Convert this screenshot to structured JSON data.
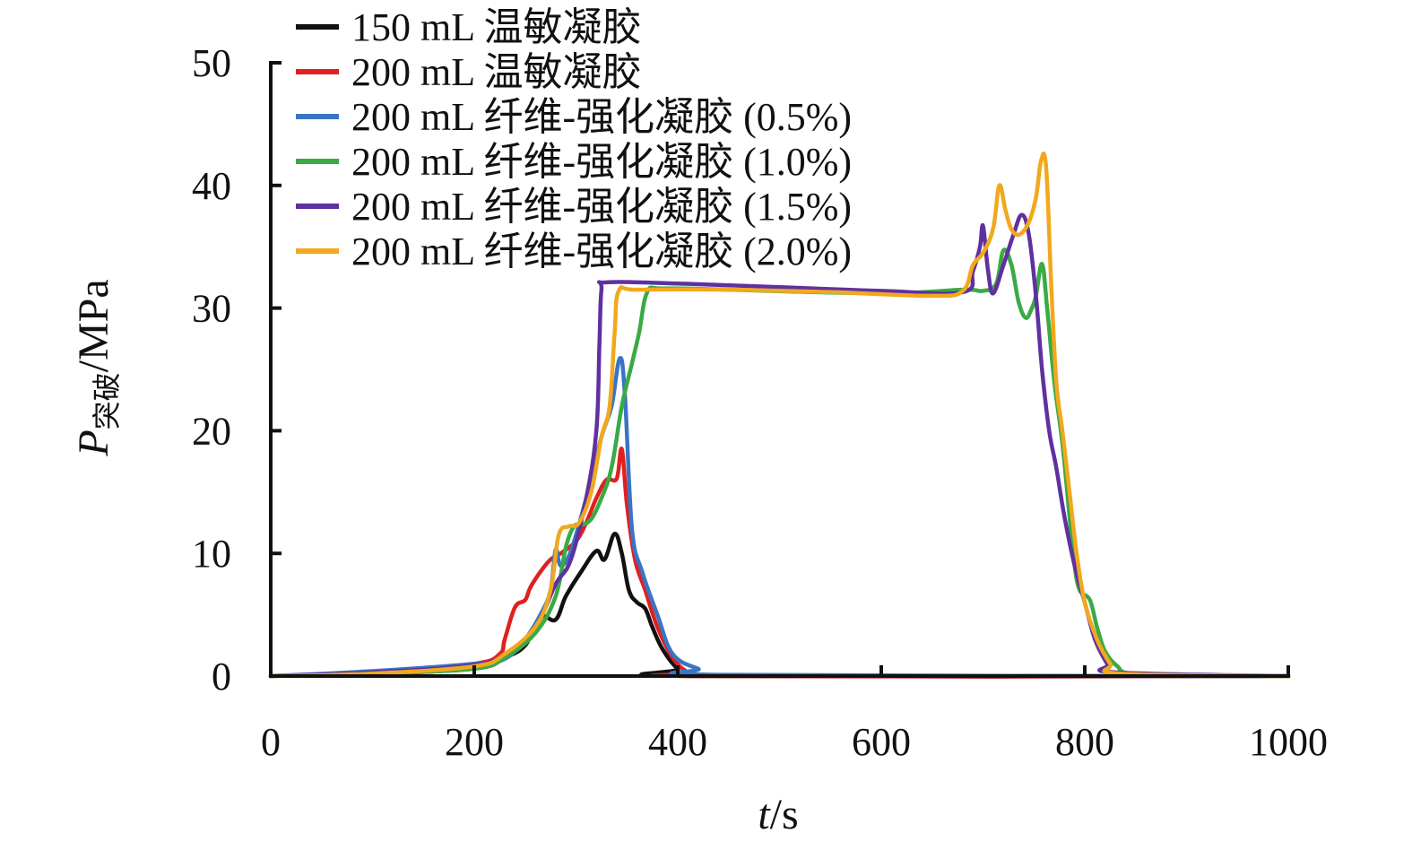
{
  "chart_data": {
    "type": "line",
    "x_axis": {
      "label_var": "t",
      "label_unit": "/s",
      "min": 0,
      "max": 1000,
      "ticks": [
        0,
        200,
        400,
        600,
        800,
        1000
      ]
    },
    "y_axis": {
      "label_var": "P",
      "label_sub": "突破",
      "label_unit": "/MPa",
      "min": 0,
      "max": 50,
      "ticks": [
        0,
        10,
        20,
        30,
        40,
        50
      ]
    },
    "legend": {
      "placement": "top-left"
    },
    "series": [
      {
        "name": "150 mL 温敏凝胶",
        "color": "#111111",
        "points": [
          [
            0,
            0
          ],
          [
            100,
            0.2
          ],
          [
            200,
            0.6
          ],
          [
            230,
            1.5
          ],
          [
            250,
            2.5
          ],
          [
            265,
            4.8
          ],
          [
            280,
            4.6
          ],
          [
            290,
            6.5
          ],
          [
            305,
            8.5
          ],
          [
            320,
            10.2
          ],
          [
            328,
            9.5
          ],
          [
            338,
            11.6
          ],
          [
            345,
            10
          ],
          [
            352,
            7
          ],
          [
            360,
            6
          ],
          [
            368,
            5.5
          ],
          [
            375,
            4
          ],
          [
            385,
            2.2
          ],
          [
            400,
            0.6
          ],
          [
            415,
            0
          ],
          [
            1000,
            0
          ]
        ]
      },
      {
        "name": "200 mL 温敏凝胶",
        "color": "#e02020",
        "points": [
          [
            0,
            0
          ],
          [
            100,
            0.3
          ],
          [
            200,
            1.0
          ],
          [
            225,
            1.8
          ],
          [
            230,
            3
          ],
          [
            240,
            5.6
          ],
          [
            250,
            6.2
          ],
          [
            255,
            7.2
          ],
          [
            265,
            8.5
          ],
          [
            275,
            9.5
          ],
          [
            285,
            10.0
          ],
          [
            300,
            11.0
          ],
          [
            310,
            12.5
          ],
          [
            320,
            14.5
          ],
          [
            330,
            16.0
          ],
          [
            340,
            16.1
          ],
          [
            345,
            18.5
          ],
          [
            350,
            14
          ],
          [
            358,
            9.5
          ],
          [
            368,
            7
          ],
          [
            380,
            4
          ],
          [
            395,
            1.5
          ],
          [
            410,
            0.3
          ],
          [
            425,
            0
          ],
          [
            1000,
            0
          ]
        ]
      },
      {
        "name": "200 mL 纤维-强化凝胶 (0.5%)",
        "color": "#3a75c4",
        "points": [
          [
            0,
            0
          ],
          [
            100,
            0.4
          ],
          [
            200,
            1.0
          ],
          [
            230,
            1.4
          ],
          [
            250,
            3
          ],
          [
            265,
            5
          ],
          [
            275,
            7
          ],
          [
            280,
            10.3
          ],
          [
            285,
            9
          ],
          [
            295,
            10.2
          ],
          [
            310,
            14.5
          ],
          [
            325,
            19.5
          ],
          [
            335,
            22
          ],
          [
            343,
            25.9
          ],
          [
            348,
            23
          ],
          [
            355,
            12
          ],
          [
            365,
            8.5
          ],
          [
            380,
            5
          ],
          [
            395,
            1.8
          ],
          [
            420,
            0.6
          ],
          [
            445,
            0.1
          ],
          [
            1000,
            0
          ]
        ]
      },
      {
        "name": "200 mL 纤维-强化凝胶 (1.0%)",
        "color": "#3aaa45",
        "points": [
          [
            0,
            0
          ],
          [
            100,
            0.2
          ],
          [
            200,
            0.6
          ],
          [
            230,
            1.5
          ],
          [
            260,
            3.5
          ],
          [
            280,
            6.5
          ],
          [
            290,
            10.5
          ],
          [
            298,
            12.2
          ],
          [
            305,
            12.3
          ],
          [
            315,
            12.8
          ],
          [
            325,
            14.5
          ],
          [
            335,
            17
          ],
          [
            345,
            22
          ],
          [
            355,
            25.5
          ],
          [
            362,
            28
          ],
          [
            370,
            31.3
          ],
          [
            385,
            31.6
          ],
          [
            450,
            31.5
          ],
          [
            600,
            31.2
          ],
          [
            680,
            31.5
          ],
          [
            700,
            31.4
          ],
          [
            713,
            32
          ],
          [
            720,
            34.7
          ],
          [
            728,
            33.5
          ],
          [
            735,
            30.5
          ],
          [
            742,
            29.2
          ],
          [
            748,
            30
          ],
          [
            752,
            31
          ],
          [
            758,
            33.6
          ],
          [
            763,
            30
          ],
          [
            770,
            24
          ],
          [
            778,
            19
          ],
          [
            785,
            13
          ],
          [
            790,
            9
          ],
          [
            795,
            7
          ],
          [
            805,
            6.2
          ],
          [
            812,
            4
          ],
          [
            820,
            2
          ],
          [
            832,
            0.8
          ],
          [
            845,
            0.2
          ],
          [
            900,
            0.05
          ],
          [
            1000,
            0
          ]
        ]
      },
      {
        "name": "200 mL 纤维-强化凝胶 (1.5%)",
        "color": "#6030a0",
        "points": [
          [
            0,
            0
          ],
          [
            100,
            0.3
          ],
          [
            200,
            0.9
          ],
          [
            230,
            1.8
          ],
          [
            260,
            4
          ],
          [
            280,
            7.5
          ],
          [
            295,
            9.5
          ],
          [
            310,
            14.5
          ],
          [
            320,
            20
          ],
          [
            323,
            27
          ],
          [
            325,
            31.5
          ],
          [
            330,
            32.1
          ],
          [
            400,
            32.0
          ],
          [
            500,
            31.7
          ],
          [
            600,
            31.4
          ],
          [
            680,
            31.3
          ],
          [
            690,
            33
          ],
          [
            697,
            35
          ],
          [
            700,
            36.7
          ],
          [
            705,
            33
          ],
          [
            710,
            31.2
          ],
          [
            720,
            33.5
          ],
          [
            730,
            36
          ],
          [
            738,
            37.6
          ],
          [
            745,
            36
          ],
          [
            752,
            31
          ],
          [
            758,
            25
          ],
          [
            765,
            20
          ],
          [
            772,
            17
          ],
          [
            780,
            13
          ],
          [
            790,
            9
          ],
          [
            800,
            6
          ],
          [
            810,
            3
          ],
          [
            822,
            1
          ],
          [
            830,
            0.3
          ],
          [
            1000,
            0
          ]
        ]
      },
      {
        "name": "200 mL 纤维-强化凝胶 (2.0%)",
        "color": "#f2a81e",
        "points": [
          [
            0,
            0
          ],
          [
            100,
            0.2
          ],
          [
            200,
            0.8
          ],
          [
            230,
            1.8
          ],
          [
            260,
            4
          ],
          [
            275,
            7
          ],
          [
            283,
            11.5
          ],
          [
            293,
            12.2
          ],
          [
            303,
            12.5
          ],
          [
            315,
            15
          ],
          [
            325,
            19.5
          ],
          [
            333,
            22
          ],
          [
            338,
            28
          ],
          [
            342,
            31.4
          ],
          [
            360,
            31.5
          ],
          [
            450,
            31.5
          ],
          [
            550,
            31.3
          ],
          [
            650,
            31.0
          ],
          [
            680,
            31.4
          ],
          [
            690,
            33.5
          ],
          [
            700,
            34.5
          ],
          [
            710,
            36.5
          ],
          [
            716,
            40.0
          ],
          [
            722,
            38
          ],
          [
            728,
            36.4
          ],
          [
            736,
            36.0
          ],
          [
            745,
            37
          ],
          [
            752,
            39
          ],
          [
            757,
            42
          ],
          [
            762,
            41.5
          ],
          [
            767,
            32
          ],
          [
            772,
            24
          ],
          [
            778,
            20
          ],
          [
            785,
            15
          ],
          [
            792,
            10
          ],
          [
            800,
            6
          ],
          [
            812,
            3
          ],
          [
            825,
            1
          ],
          [
            835,
            0.2
          ],
          [
            1000,
            0
          ]
        ]
      }
    ]
  }
}
